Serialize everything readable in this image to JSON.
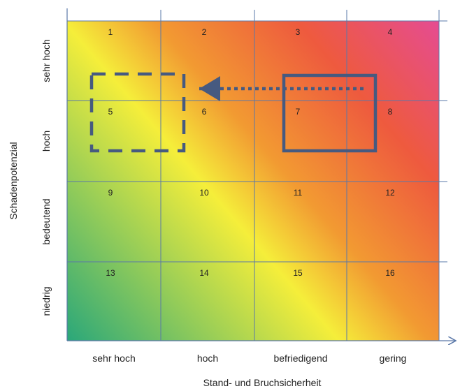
{
  "diagram": {
    "type": "risk-matrix",
    "x_axis": {
      "title": "Stand- und Bruchsicherheit",
      "ticks": [
        "sehr hoch",
        "hoch",
        "befriedigend",
        "gering"
      ]
    },
    "y_axis": {
      "title": "Schadenpotenzial",
      "ticks": [
        "sehr hoch",
        "hoch",
        "bedeutend",
        "niedrig"
      ]
    },
    "cells": [
      [
        "1",
        "2",
        "3",
        "4"
      ],
      [
        "5",
        "6",
        "7",
        "8"
      ],
      [
        "9",
        "10",
        "11",
        "12"
      ],
      [
        "13",
        "14",
        "15",
        "16"
      ]
    ],
    "current_state": {
      "row": 2,
      "col": 3,
      "style": "solid rectangle"
    },
    "target_state": {
      "row": 2,
      "col": 1,
      "style": "dashed rectangle"
    },
    "arrow": {
      "from_col": 4,
      "to_col": 1,
      "style": "dotted",
      "direction": "left"
    },
    "colors": {
      "low_risk": "#2aa77a",
      "mid_risk": "#f5ee3a",
      "elevated_risk": "#f29a32",
      "high_risk": "#ee5a3e",
      "very_high_risk": "#e54c92",
      "grid_line": "#5a78a8",
      "marker": "#465a80"
    }
  }
}
